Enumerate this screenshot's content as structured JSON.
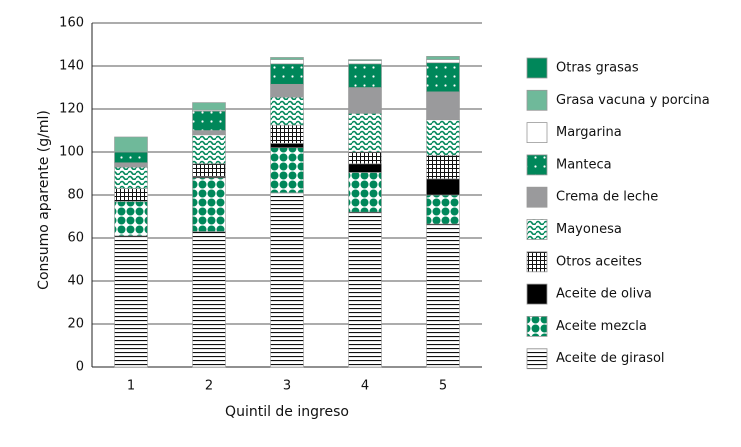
{
  "chart_data": {
    "type": "stacked_bar",
    "x_label": "Quintil de ingreso",
    "y_label": "Consumo aparente (g/ml)",
    "categories": [
      "1",
      "2",
      "3",
      "4",
      "5"
    ],
    "ylim": [
      0,
      160
    ],
    "yticks": [
      0,
      20,
      40,
      60,
      80,
      100,
      120,
      140,
      160
    ],
    "grid": true,
    "legend": "right",
    "series": [
      {
        "name": "Aceite de girasol",
        "color": "#111111",
        "pattern": "hlines",
        "values": [
          61,
          63,
          81,
          72,
          66.5
        ]
      },
      {
        "name": "Aceite mezcla",
        "color": "#00875a",
        "pattern": "bigdots",
        "values": [
          16,
          25,
          21,
          18.5,
          13.5
        ]
      },
      {
        "name": "Aceite de oliva",
        "color": "#000000",
        "pattern": "solid",
        "values": [
          0,
          0.5,
          2,
          4,
          7.5
        ]
      },
      {
        "name": "Otros aceites",
        "color": "#111111",
        "pattern": "grid",
        "values": [
          6,
          6,
          8.5,
          5.5,
          11
        ]
      },
      {
        "name": "Mayonesa",
        "color": "#00875a",
        "pattern": "wave",
        "values": [
          10,
          13.5,
          13,
          18,
          16.5
        ]
      },
      {
        "name": "Crema de leche",
        "color": "#9a9a9c",
        "pattern": "solid",
        "values": [
          2,
          2,
          6,
          12,
          13
        ]
      },
      {
        "name": "Manteca",
        "color": "#00875a",
        "pattern": "smalldots",
        "values": [
          5,
          9,
          9.5,
          11,
          13.5
        ]
      },
      {
        "name": "Margarina",
        "color": "#ffffff",
        "pattern": "solid",
        "values": [
          0,
          0.5,
          2,
          1.5,
          1.5
        ]
      },
      {
        "name": "Grasa vacuna y porcina",
        "color": "#6fb99a",
        "pattern": "solid",
        "values": [
          7,
          3.5,
          1,
          0.5,
          1.5
        ]
      },
      {
        "name": "Otras grasas",
        "color": "#00875a",
        "pattern": "solid",
        "values": [
          0,
          0,
          0,
          0,
          0
        ]
      }
    ]
  }
}
